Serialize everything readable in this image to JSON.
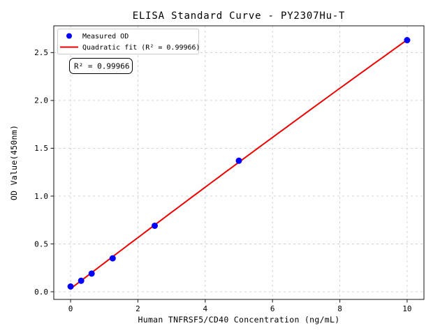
{
  "chart_data": {
    "type": "scatter",
    "title": "ELISA Standard Curve - PY2307Hu-T",
    "xlabel": "Human TNFRSF5/CD40 Concentration (ng/mL)",
    "ylabel": "OD Value(450nm)",
    "annotation": "R² = 0.99966",
    "x": [
      0,
      0.313,
      0.625,
      1.25,
      2.5,
      5,
      10
    ],
    "series": [
      {
        "name": "Measured OD",
        "type": "scatter",
        "color": "#0000ff",
        "values": [
          0.055,
          0.115,
          0.19,
          0.35,
          0.69,
          1.37,
          2.63
        ]
      },
      {
        "name": "Quadratic fit (R² = 0.99966)",
        "type": "quadratic-fit-line",
        "color": "#ee0000",
        "r_squared": 0.99966,
        "fit_x_range": [
          0,
          10
        ]
      }
    ],
    "xticks": [
      0,
      2,
      4,
      6,
      8,
      10
    ],
    "yticks": [
      0,
      0.5,
      1,
      1.5,
      2,
      2.5
    ],
    "xlim": [
      -0.5,
      10.5
    ],
    "ylim": [
      -0.08,
      2.78
    ],
    "grid": true,
    "grid_style": "dashed",
    "legend_position": "upper left",
    "colors": {
      "grid": "#cfcfcf",
      "spine": "#262626",
      "legend_border": "#cccccc",
      "background": "#ffffff",
      "text": "#000000"
    }
  }
}
